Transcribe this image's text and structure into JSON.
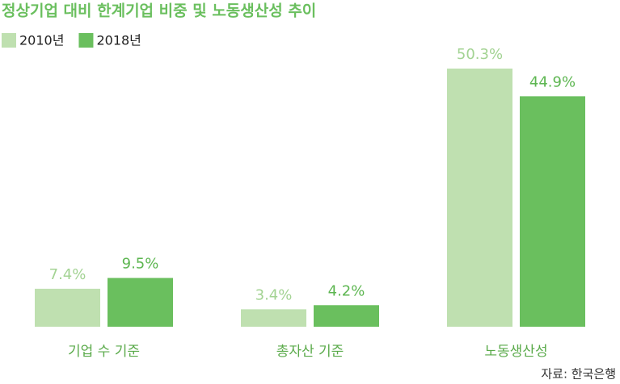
{
  "chart_data": {
    "type": "bar",
    "title": "정상기업 대비 한계기업 비중 및 노동생산성 추이",
    "categories": [
      "기업 수 기준",
      "총자산 기준",
      "노동생산성"
    ],
    "series": [
      {
        "name": "2010년",
        "color": "#bfe0b0",
        "label_color": "#a3d393",
        "values": [
          7.4,
          3.4,
          50.3
        ],
        "value_labels": [
          "7.4%",
          "3.4%",
          "50.3%"
        ]
      },
      {
        "name": "2018년",
        "color": "#6abf5e",
        "label_color": "#5db651",
        "values": [
          9.5,
          4.2,
          44.9
        ],
        "value_labels": [
          "9.5%",
          "4.2%",
          "44.9%"
        ]
      }
    ],
    "source": "자료: 한국은행"
  }
}
